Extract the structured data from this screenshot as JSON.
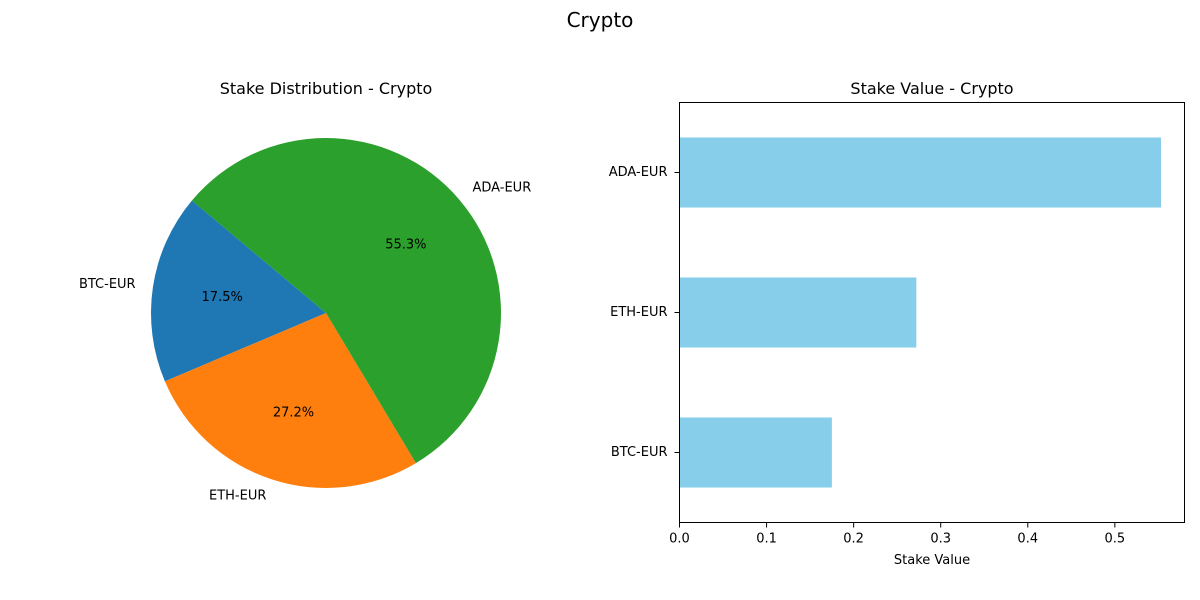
{
  "figure": {
    "suptitle": "Crypto"
  },
  "chart_data": [
    {
      "type": "pie",
      "title": "Stake Distribution - Crypto",
      "categories": [
        "BTC-EUR",
        "ETH-EUR",
        "ADA-EUR"
      ],
      "values": [
        0.175,
        0.272,
        0.553
      ],
      "percent_labels": [
        "17.5%",
        "27.2%",
        "55.3%"
      ],
      "colors": [
        "#1f77b4",
        "#ff7f0e",
        "#2ca02c"
      ],
      "start_angle_deg": 140,
      "direction": "counterclockwise"
    },
    {
      "type": "bar",
      "orientation": "horizontal",
      "title": "Stake Value - Crypto",
      "categories": [
        "BTC-EUR",
        "ETH-EUR",
        "ADA-EUR"
      ],
      "values": [
        0.175,
        0.272,
        0.553
      ],
      "xlabel": "Stake Value",
      "ylabel": "",
      "xlim": [
        0,
        0.58
      ],
      "xticks": [
        0.0,
        0.1,
        0.2,
        0.3,
        0.4,
        0.5
      ],
      "xtick_labels": [
        "0.0",
        "0.1",
        "0.2",
        "0.3",
        "0.4",
        "0.5"
      ],
      "bar_color": "#87ceeb",
      "grid": false
    }
  ]
}
